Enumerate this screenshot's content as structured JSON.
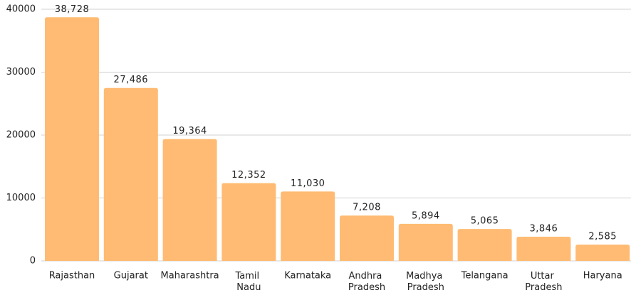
{
  "chart_data": {
    "type": "bar",
    "categories": [
      "Rajasthan",
      "Gujarat",
      "Maharashtra",
      "Tamil Nadu",
      "Karnataka",
      "Andhra Pradesh",
      "Madhya Pradesh",
      "Telangana",
      "Uttar Pradesh",
      "Haryana"
    ],
    "values": [
      38728,
      27486,
      19364,
      12352,
      11030,
      7208,
      5894,
      5065,
      3846,
      2585
    ],
    "value_labels": [
      "38,728",
      "27,486",
      "19,364",
      "12,352",
      "11,030",
      "7,208",
      "5,894",
      "5,065",
      "3,846",
      "2,585"
    ],
    "color": "#ffbb73",
    "ylim": [
      0,
      40000
    ],
    "yticks": [
      0,
      10000,
      20000,
      30000,
      40000
    ],
    "grid": true
  }
}
